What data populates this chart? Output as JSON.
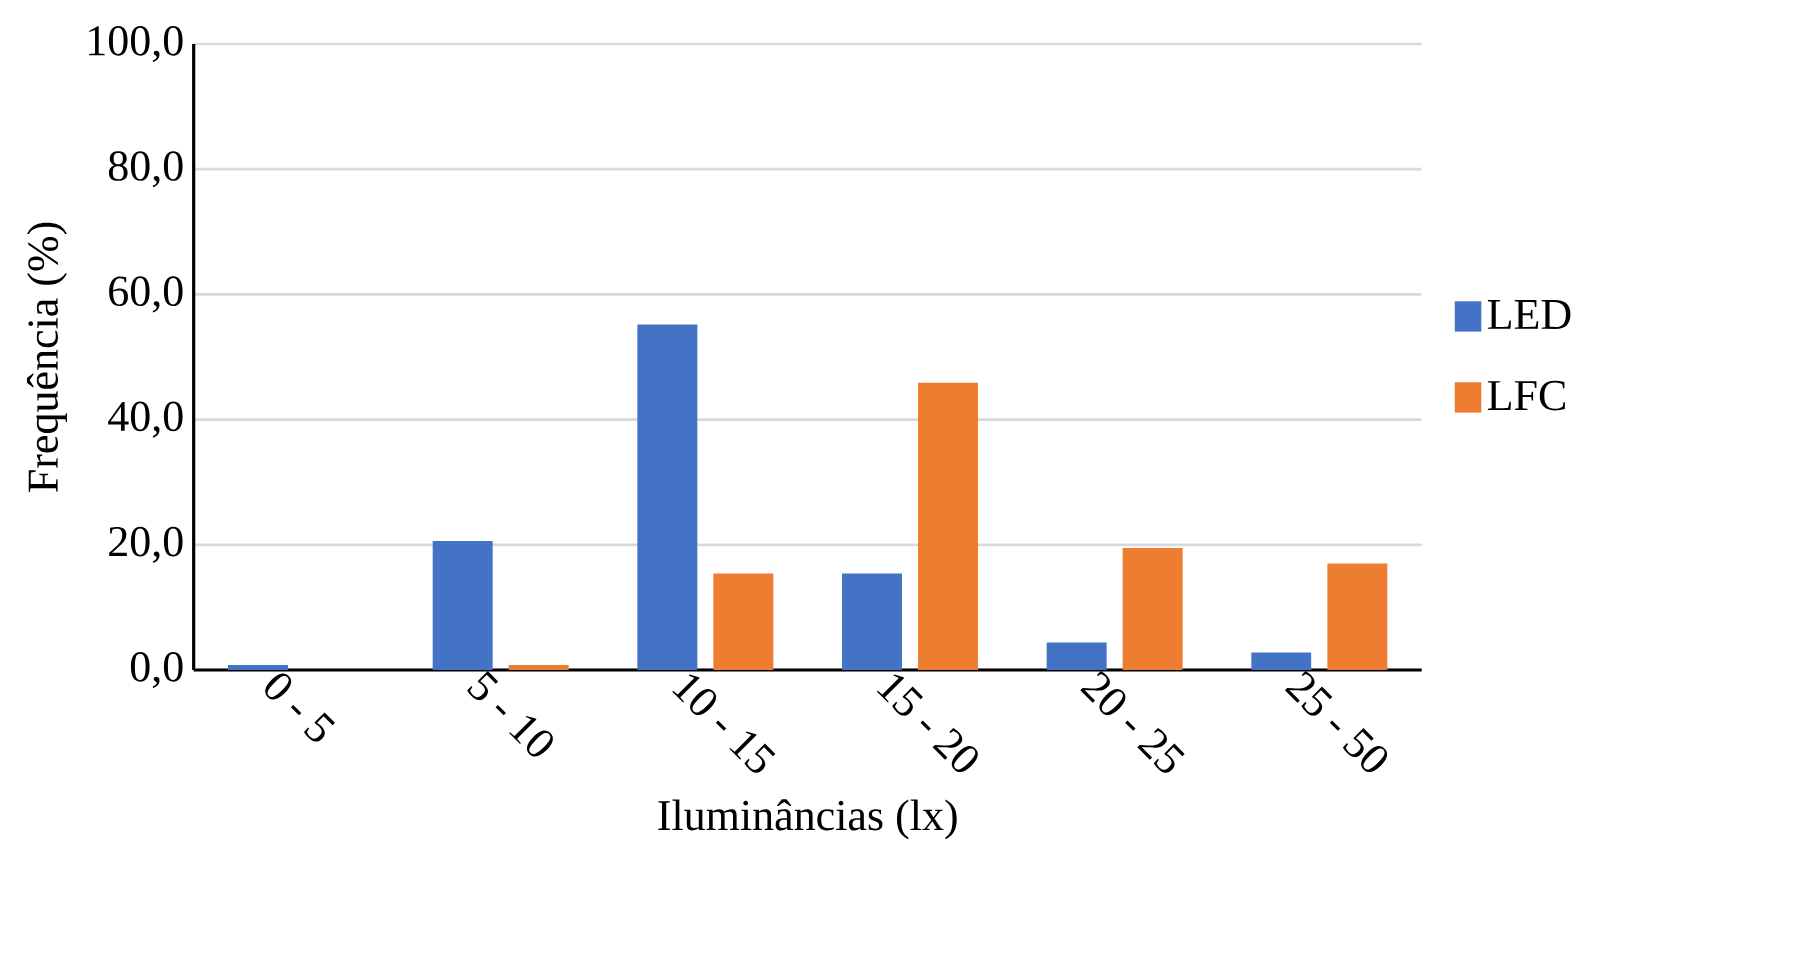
{
  "chart_data": {
    "type": "bar",
    "xlabel": "Iluminâncias (lx)",
    "ylabel": "Frequência (%)",
    "categories": [
      "0 - 5",
      "5 - 10",
      "10 - 15",
      "15 - 20",
      "20 - 25",
      "25 - 50"
    ],
    "series": [
      {
        "name": "LED",
        "color": "#4472c4",
        "values": [
          0.8,
          20.6,
          55.2,
          15.4,
          4.4,
          2.8
        ]
      },
      {
        "name": "LFC",
        "color": "#ed7d31",
        "values": [
          0,
          0.8,
          15.4,
          45.9,
          19.5,
          17.0
        ]
      }
    ],
    "ylim": [
      0,
      100
    ],
    "yticks": [
      {
        "value": 0,
        "label": "0,0"
      },
      {
        "value": 20,
        "label": "20,0"
      },
      {
        "value": 40,
        "label": "40,0"
      },
      {
        "value": 60,
        "label": "60,0"
      },
      {
        "value": 80,
        "label": "80,0"
      },
      {
        "value": 100,
        "label": "100,0"
      }
    ],
    "grid": "y",
    "legend": "right"
  }
}
